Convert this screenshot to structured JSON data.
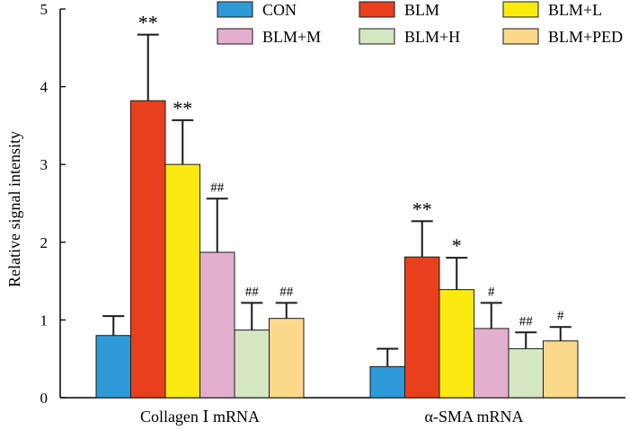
{
  "chart_data": {
    "type": "bar",
    "ylabel": "Relative signal intensity",
    "xlabel": "",
    "ylim": [
      0,
      5
    ],
    "yticks": [
      "0",
      "1",
      "2",
      "3",
      "4",
      "5"
    ],
    "categories": [
      "Collagen Ⅰ mRNA",
      "α-SMA mRNA"
    ],
    "legend_position": "top-right",
    "series": [
      {
        "name": "CON",
        "color": "#2E9AD7",
        "values": [
          0.8,
          0.4
        ],
        "errors": [
          0.25,
          0.23
        ],
        "sig": [
          "",
          ""
        ]
      },
      {
        "name": "BLM",
        "color": "#E8401C",
        "values": [
          3.82,
          1.81
        ],
        "errors": [
          0.85,
          0.46
        ],
        "sig": [
          "**",
          "**"
        ]
      },
      {
        "name": "BLM+L",
        "color": "#FBEA10",
        "values": [
          3.0,
          1.39
        ],
        "errors": [
          0.57,
          0.41
        ],
        "sig": [
          "**",
          "*"
        ]
      },
      {
        "name": "BLM+M",
        "color": "#E3AFCF",
        "values": [
          1.87,
          0.89
        ],
        "errors": [
          0.69,
          0.33
        ],
        "sig": [
          "##",
          "#"
        ]
      },
      {
        "name": "BLM+H",
        "color": "#D4E6C2",
        "values": [
          0.87,
          0.63
        ],
        "errors": [
          0.35,
          0.21
        ],
        "sig": [
          "##",
          "##"
        ]
      },
      {
        "name": "BLM+PED",
        "color": "#FCD98A",
        "values": [
          1.02,
          0.73
        ],
        "errors": [
          0.2,
          0.18
        ],
        "sig": [
          "##",
          "#"
        ]
      }
    ]
  }
}
